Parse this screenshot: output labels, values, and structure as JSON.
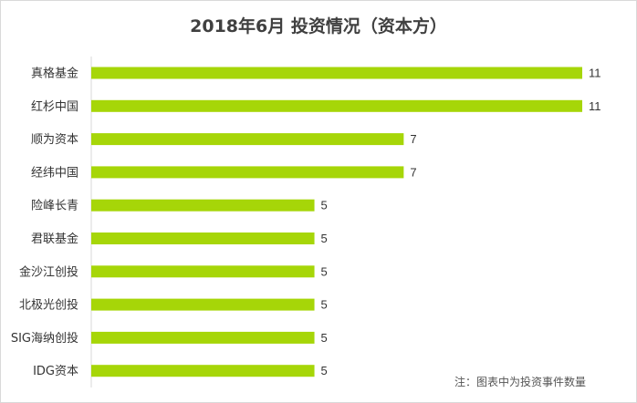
{
  "chart_data": {
    "type": "bar",
    "orientation": "horizontal",
    "title": "2018年6月 投资情况（资本方）",
    "categories": [
      "真格基金",
      "红杉中国",
      "顺为资本",
      "经纬中国",
      "险峰长青",
      "君联基金",
      "金沙江创投",
      "北极光创投",
      "SIG海纳创投",
      "IDG资本"
    ],
    "values": [
      11,
      11,
      7,
      7,
      5,
      5,
      5,
      5,
      5,
      5
    ],
    "xlim": [
      0,
      11
    ],
    "grid": false,
    "bar_color": "#a6d608",
    "note": "注：图表中为投资事件数量"
  }
}
